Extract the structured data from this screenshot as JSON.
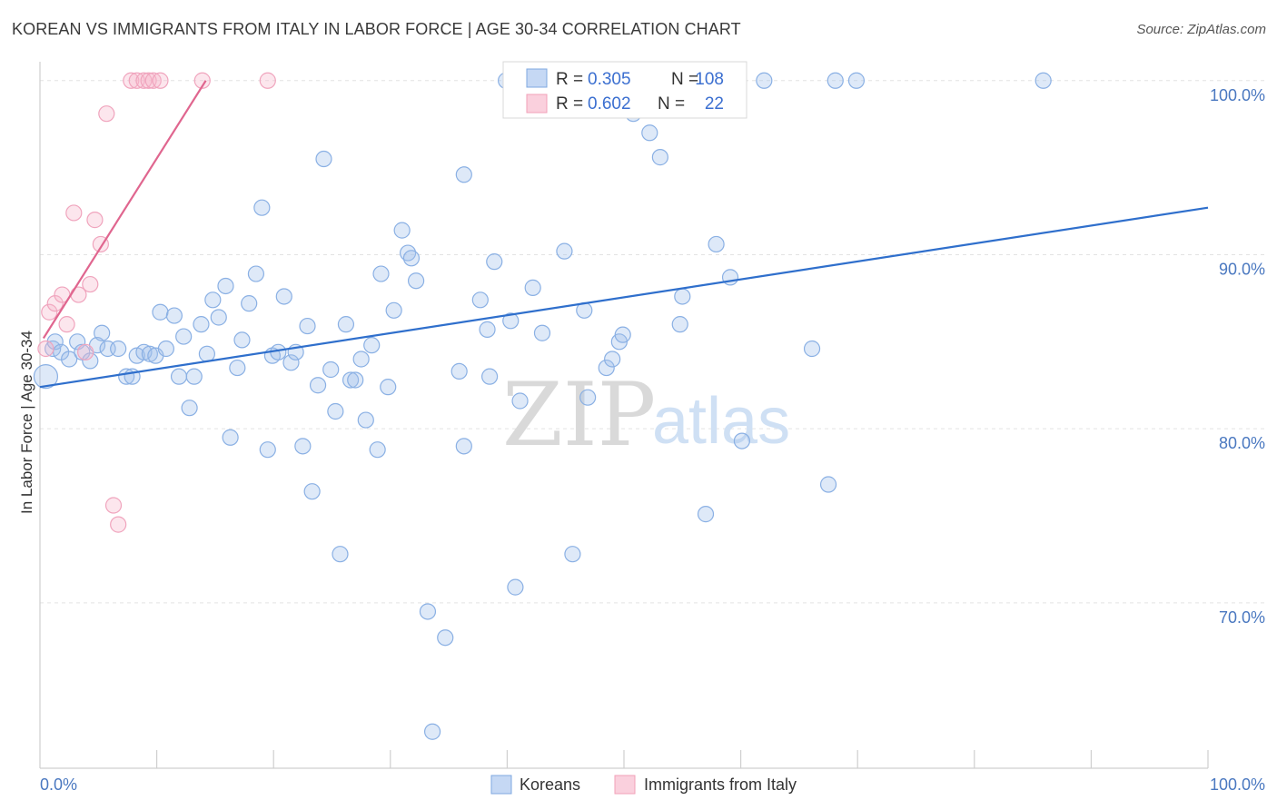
{
  "title": "KOREAN VS IMMIGRANTS FROM ITALY IN LABOR FORCE | AGE 30-34 CORRELATION CHART",
  "source": "Source: ZipAtlas.com",
  "watermark": {
    "zip": "ZIP",
    "atlas": "atlas"
  },
  "colors": {
    "korean": "#7fa8e0",
    "korean_line": "#2f6fcc",
    "italy": "#f2a0b8",
    "italy_line": "#e0668f",
    "tick_label": "#4a78c0"
  },
  "chart_data": {
    "type": "scatter",
    "title": "KOREAN VS IMMIGRANTS FROM ITALY IN LABOR FORCE | AGE 30-34 CORRELATION CHART",
    "ylabel": "In Labor Force | Age 30-34",
    "xlabel": "",
    "xlim": [
      0,
      100
    ],
    "ylim": [
      60.5,
      101.5
    ],
    "x_tick_labels": [
      "0.0%",
      "100.0%"
    ],
    "y_ticks": [
      70,
      80,
      90,
      100
    ],
    "y_tick_labels": [
      "70.0%",
      "80.0%",
      "90.0%",
      "100.0%"
    ],
    "grid": true,
    "legend_top": [
      {
        "r_label": "R =",
        "r_value": "0.305",
        "n_label": "N =",
        "n_value": "108"
      },
      {
        "r_label": "R =",
        "r_value": "0.602",
        "n_label": "N =",
        "n_value": "22"
      }
    ],
    "series": [
      {
        "name": "Koreans",
        "trend": {
          "x": [
            0,
            100
          ],
          "y": [
            82.4,
            92.7
          ]
        },
        "points": [
          [
            0.5,
            83.0
          ],
          [
            1.1,
            84.6
          ],
          [
            1.3,
            85.0
          ],
          [
            1.8,
            84.4
          ],
          [
            2.5,
            84.0
          ],
          [
            3.2,
            85.0
          ],
          [
            3.6,
            84.4
          ],
          [
            4.3,
            83.9
          ],
          [
            4.9,
            84.8
          ],
          [
            5.3,
            85.5
          ],
          [
            5.8,
            84.6
          ],
          [
            6.7,
            84.6
          ],
          [
            7.4,
            83.0
          ],
          [
            7.9,
            83.0
          ],
          [
            8.3,
            84.2
          ],
          [
            8.9,
            84.4
          ],
          [
            9.4,
            84.3
          ],
          [
            9.9,
            84.2
          ],
          [
            10.3,
            86.7
          ],
          [
            10.8,
            84.6
          ],
          [
            11.5,
            86.5
          ],
          [
            11.9,
            83.0
          ],
          [
            12.3,
            85.3
          ],
          [
            12.8,
            81.2
          ],
          [
            13.2,
            83.0
          ],
          [
            13.8,
            86.0
          ],
          [
            14.3,
            84.3
          ],
          [
            14.8,
            87.4
          ],
          [
            15.3,
            86.4
          ],
          [
            15.9,
            88.2
          ],
          [
            16.3,
            79.5
          ],
          [
            16.9,
            83.5
          ],
          [
            17.3,
            85.1
          ],
          [
            17.9,
            87.2
          ],
          [
            18.5,
            88.9
          ],
          [
            19.0,
            92.7
          ],
          [
            19.5,
            78.8
          ],
          [
            19.9,
            84.2
          ],
          [
            20.4,
            84.4
          ],
          [
            20.9,
            87.6
          ],
          [
            21.5,
            83.8
          ],
          [
            21.9,
            84.4
          ],
          [
            22.5,
            79.0
          ],
          [
            22.9,
            85.9
          ],
          [
            23.3,
            76.4
          ],
          [
            23.8,
            82.5
          ],
          [
            24.3,
            95.5
          ],
          [
            24.9,
            83.4
          ],
          [
            25.3,
            81.0
          ],
          [
            25.7,
            72.8
          ],
          [
            26.2,
            86.0
          ],
          [
            26.6,
            82.8
          ],
          [
            27.0,
            82.8
          ],
          [
            27.5,
            84.0
          ],
          [
            27.9,
            80.5
          ],
          [
            28.4,
            84.8
          ],
          [
            28.9,
            78.8
          ],
          [
            29.2,
            88.9
          ],
          [
            29.8,
            82.4
          ],
          [
            30.3,
            86.8
          ],
          [
            31.0,
            91.4
          ],
          [
            31.5,
            90.1
          ],
          [
            31.8,
            89.8
          ],
          [
            32.2,
            88.5
          ],
          [
            33.2,
            69.5
          ],
          [
            33.6,
            62.6
          ],
          [
            34.7,
            68.0
          ],
          [
            35.9,
            83.3
          ],
          [
            36.3,
            94.6
          ],
          [
            36.3,
            79.0
          ],
          [
            37.7,
            87.4
          ],
          [
            38.3,
            85.7
          ],
          [
            38.5,
            83.0
          ],
          [
            38.9,
            89.6
          ],
          [
            39.9,
            100.0
          ],
          [
            40.3,
            86.2
          ],
          [
            41.1,
            81.6
          ],
          [
            40.7,
            70.9
          ],
          [
            42.2,
            88.1
          ],
          [
            43.0,
            85.5
          ],
          [
            44.9,
            90.2
          ],
          [
            45.6,
            72.8
          ],
          [
            46.6,
            86.8
          ],
          [
            46.9,
            81.8
          ],
          [
            48.5,
            83.5
          ],
          [
            49.0,
            84.0
          ],
          [
            49.6,
            85.0
          ],
          [
            49.9,
            85.4
          ],
          [
            50.8,
            98.1
          ],
          [
            51.6,
            100.0
          ],
          [
            52.2,
            97.0
          ],
          [
            53.1,
            95.6
          ],
          [
            55.0,
            87.6
          ],
          [
            54.8,
            86.0
          ],
          [
            57.0,
            75.1
          ],
          [
            57.9,
            90.6
          ],
          [
            59.1,
            88.7
          ],
          [
            60.1,
            79.3
          ],
          [
            62.0,
            100.0
          ],
          [
            66.1,
            84.6
          ],
          [
            67.5,
            76.8
          ],
          [
            68.1,
            100.0
          ],
          [
            69.9,
            100.0
          ],
          [
            85.9,
            100.0
          ]
        ],
        "sizes_note": "one larger point at (0.5, 83.0)"
      },
      {
        "name": "Immigrants from Italy",
        "trend": {
          "x": [
            0.3,
            14.2
          ],
          "y": [
            85.2,
            100.0
          ]
        },
        "points": [
          [
            0.5,
            84.6
          ],
          [
            0.8,
            86.7
          ],
          [
            1.3,
            87.2
          ],
          [
            1.9,
            87.7
          ],
          [
            2.3,
            86.0
          ],
          [
            2.9,
            92.4
          ],
          [
            3.3,
            87.7
          ],
          [
            3.9,
            84.4
          ],
          [
            4.3,
            88.3
          ],
          [
            4.7,
            92.0
          ],
          [
            5.2,
            90.6
          ],
          [
            5.7,
            98.1
          ],
          [
            6.3,
            75.6
          ],
          [
            6.7,
            74.5
          ],
          [
            7.8,
            100.0
          ],
          [
            8.3,
            100.0
          ],
          [
            8.9,
            100.0
          ],
          [
            9.3,
            100.0
          ],
          [
            9.7,
            100.0
          ],
          [
            10.3,
            100.0
          ],
          [
            13.9,
            100.0
          ],
          [
            19.5,
            100.0
          ]
        ]
      }
    ]
  },
  "legend_bottom": [
    {
      "label": "Koreans"
    },
    {
      "label": "Immigrants from Italy"
    }
  ]
}
